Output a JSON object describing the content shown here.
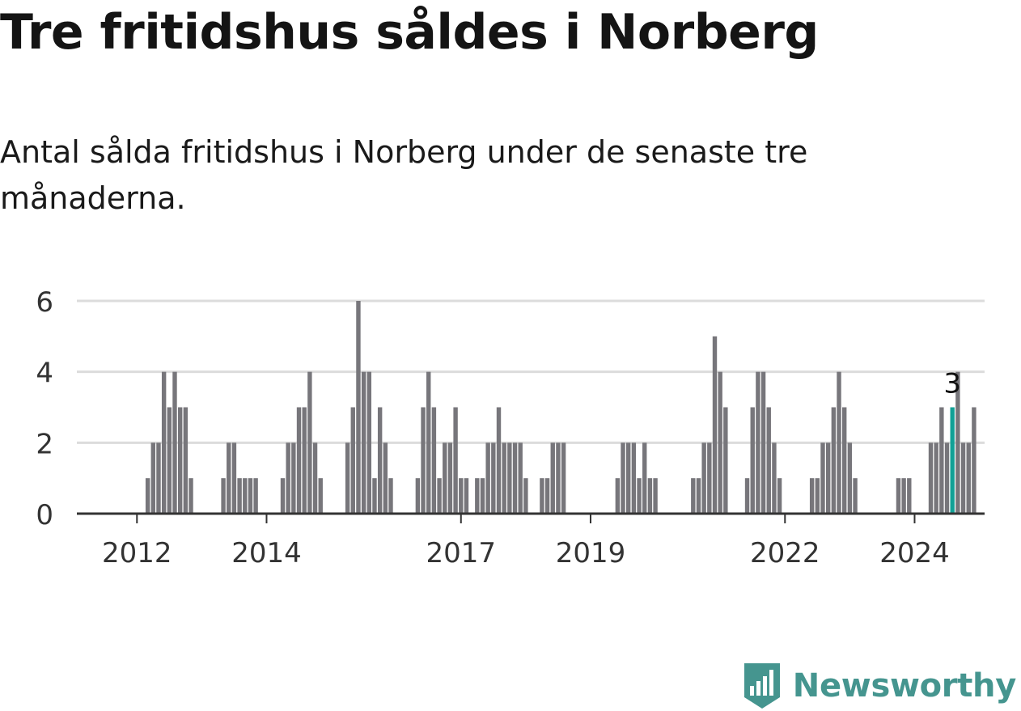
{
  "header": {
    "title": "Tre fritidshus såldes i Norberg",
    "subtitle": "Antal sålda fritidshus i Norberg under de senaste tre månaderna."
  },
  "brand": {
    "name": "Newsworthy"
  },
  "colors": {
    "bar": "#77767b",
    "highlight": "#12a096",
    "grid": "#dcdcdc",
    "axis": "#333333",
    "brand": "#45958f"
  },
  "chart_data": {
    "type": "bar",
    "x_start": "2011-04",
    "x_interval": "month",
    "x_tick_labels": [
      "2012",
      "2014",
      "2017",
      "2019",
      "2022",
      "2024"
    ],
    "x_tick_dates": [
      "2012-01",
      "2014-01",
      "2017-01",
      "2019-01",
      "2022-01",
      "2024-01"
    ],
    "y_ticks": [
      0,
      2,
      4,
      6
    ],
    "ylim": [
      0,
      6
    ],
    "grid": true,
    "values": [
      0,
      0,
      0,
      0,
      0,
      0,
      0,
      0,
      0,
      0,
      0,
      1,
      2,
      2,
      4,
      3,
      4,
      3,
      3,
      1,
      0,
      0,
      0,
      0,
      0,
      1,
      2,
      2,
      1,
      1,
      1,
      1,
      0,
      0,
      0,
      0,
      1,
      2,
      2,
      3,
      3,
      4,
      2,
      1,
      0,
      0,
      0,
      0,
      2,
      3,
      6,
      4,
      4,
      1,
      3,
      2,
      1,
      0,
      0,
      0,
      0,
      1,
      3,
      4,
      3,
      1,
      2,
      2,
      3,
      1,
      1,
      0,
      1,
      1,
      2,
      2,
      3,
      2,
      2,
      2,
      2,
      1,
      0,
      0,
      1,
      1,
      2,
      2,
      2,
      0,
      0,
      0,
      0,
      0,
      0,
      0,
      0,
      0,
      1,
      2,
      2,
      2,
      1,
      2,
      1,
      1,
      0,
      0,
      0,
      0,
      0,
      0,
      1,
      1,
      2,
      2,
      5,
      4,
      3,
      0,
      0,
      0,
      1,
      3,
      4,
      4,
      3,
      2,
      1,
      0,
      0,
      0,
      0,
      0,
      1,
      1,
      2,
      2,
      3,
      4,
      3,
      2,
      1,
      0,
      0,
      0,
      0,
      0,
      0,
      0,
      1,
      1,
      1,
      0,
      0,
      0,
      2,
      2,
      3,
      2,
      3,
      4,
      2,
      2,
      3
    ],
    "highlight": {
      "date": "2024-08",
      "value": 3,
      "label": "3"
    }
  }
}
